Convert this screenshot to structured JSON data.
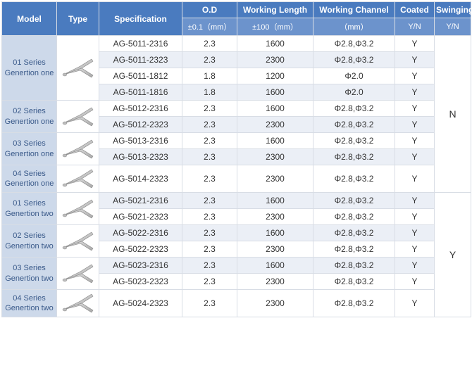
{
  "headers": {
    "model": "Model",
    "type": "Type",
    "spec": "Specification",
    "od": "O.D",
    "len": "Working Length",
    "chan": "Working Channel",
    "coated": "Coated",
    "swing": "Swinging",
    "od_sub": "±0.1（mm）",
    "len_sub": "±100（mm）",
    "chan_sub": "（mm）",
    "coated_sub": "Y/N",
    "swing_sub": "Y/N"
  },
  "groups": [
    {
      "model": "01 Series Genertion one",
      "rows": [
        {
          "spec": "AG-5011-2316",
          "od": "2.3",
          "len": "1600",
          "chan": "Φ2.8,Φ3.2",
          "coated": "Y",
          "stripe": false
        },
        {
          "spec": "AG-5011-2323",
          "od": "2.3",
          "len": "2300",
          "chan": "Φ2.8,Φ3.2",
          "coated": "Y",
          "stripe": true
        },
        {
          "spec": "AG-5011-1812",
          "od": "1.8",
          "len": "1200",
          "chan": "Φ2.0",
          "coated": "Y",
          "stripe": false
        },
        {
          "spec": "AG-5011-1816",
          "od": "1.8",
          "len": "1600",
          "chan": "Φ2.0",
          "coated": "Y",
          "stripe": true
        }
      ]
    },
    {
      "model": "02 Series Genertion one",
      "rows": [
        {
          "spec": "AG-5012-2316",
          "od": "2.3",
          "len": "1600",
          "chan": "Φ2.8,Φ3.2",
          "coated": "Y",
          "stripe": false
        },
        {
          "spec": "AG-5012-2323",
          "od": "2.3",
          "len": "2300",
          "chan": "Φ2.8,Φ3.2",
          "coated": "Y",
          "stripe": true
        }
      ]
    },
    {
      "model": "03 Series Genertion one",
      "rows": [
        {
          "spec": "AG-5013-2316",
          "od": "2.3",
          "len": "1600",
          "chan": "Φ2.8,Φ3.2",
          "coated": "Y",
          "stripe": false
        },
        {
          "spec": "AG-5013-2323",
          "od": "2.3",
          "len": "2300",
          "chan": "Φ2.8,Φ3.2",
          "coated": "Y",
          "stripe": true
        }
      ]
    },
    {
      "model": "04 Series Genertion one",
      "rows": [
        {
          "spec": "AG-5014-2323",
          "od": "2.3",
          "len": "2300",
          "chan": "Φ2.8,Φ3.2",
          "coated": "Y",
          "stripe": false
        }
      ]
    },
    {
      "model": "01 Series Genertion two",
      "rows": [
        {
          "spec": "AG-5021-2316",
          "od": "2.3",
          "len": "1600",
          "chan": "Φ2.8,Φ3.2",
          "coated": "Y",
          "stripe": true
        },
        {
          "spec": "AG-5021-2323",
          "od": "2.3",
          "len": "2300",
          "chan": "Φ2.8,Φ3.2",
          "coated": "Y",
          "stripe": false
        }
      ]
    },
    {
      "model": "02 Series Genertion two",
      "rows": [
        {
          "spec": "AG-5022-2316",
          "od": "2.3",
          "len": "1600",
          "chan": "Φ2.8,Φ3.2",
          "coated": "Y",
          "stripe": true
        },
        {
          "spec": "AG-5022-2323",
          "od": "2.3",
          "len": "2300",
          "chan": "Φ2.8,Φ3.2",
          "coated": "Y",
          "stripe": false
        }
      ]
    },
    {
      "model": "03 Series Genertion two",
      "rows": [
        {
          "spec": "AG-5023-2316",
          "od": "2.3",
          "len": "1600",
          "chan": "Φ2.8,Φ3.2",
          "coated": "Y",
          "stripe": true
        },
        {
          "spec": "AG-5023-2323",
          "od": "2.3",
          "len": "2300",
          "chan": "Φ2.8,Φ3.2",
          "coated": "Y",
          "stripe": false
        }
      ]
    },
    {
      "model": "04 Series Genertion two",
      "rows": [
        {
          "spec": "AG-5024-2323",
          "od": "2.3",
          "len": "2300",
          "chan": "Φ2.8,Φ3.2",
          "coated": "Y",
          "stripe": false
        }
      ]
    }
  ],
  "swinging": [
    {
      "value": "N",
      "groupSpan": 4
    },
    {
      "value": "Y",
      "groupSpan": 4
    }
  ],
  "colors": {
    "header_bg": "#4a7bbf",
    "subheader_bg": "#6c93cc",
    "model_bg": "#cdd9ea",
    "stripe_bg": "#ebeff6",
    "border": "#d8dde5"
  }
}
